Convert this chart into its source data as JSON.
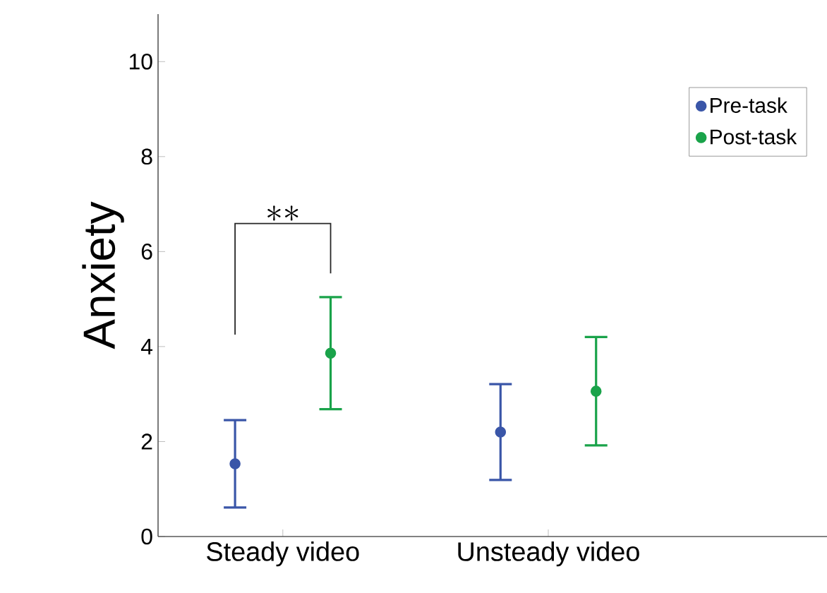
{
  "chart_data": {
    "type": "scatter",
    "ylabel": "Anxiety",
    "categories": [
      "Steady video",
      "Unsteady video"
    ],
    "series": [
      {
        "name": "Pre-task",
        "color": "#3a56a8",
        "values": [
          1.53,
          2.2
        ],
        "errors": [
          [
            0.61,
            2.45
          ],
          [
            1.19,
            3.21
          ]
        ]
      },
      {
        "name": "Post-task",
        "color": "#1aa34a",
        "values": [
          3.86,
          3.06
        ],
        "errors": [
          [
            2.68,
            5.04
          ],
          [
            1.92,
            4.2
          ]
        ]
      }
    ],
    "ylim": [
      0,
      11
    ],
    "yticks": [
      0,
      2,
      4,
      6,
      8,
      10
    ],
    "marker": "circle",
    "legend": "top right",
    "grid": false,
    "annotations": [
      "**"
    ]
  }
}
